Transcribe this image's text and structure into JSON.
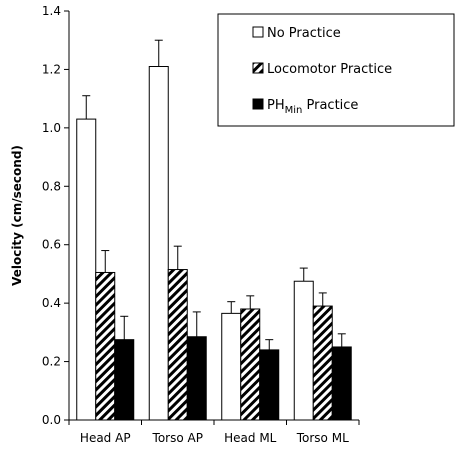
{
  "chart_data": {
    "type": "bar",
    "categories": [
      "Head AP",
      "Torso AP",
      "Head ML",
      "Torso ML"
    ],
    "series": [
      {
        "name": "No Practice",
        "values": [
          1.03,
          1.21,
          0.365,
          0.475
        ],
        "errors": [
          0.08,
          0.09,
          0.04,
          0.045
        ],
        "fill": "white"
      },
      {
        "name": "Locomotor Practice",
        "values": [
          0.505,
          0.515,
          0.38,
          0.39
        ],
        "errors": [
          0.075,
          0.08,
          0.045,
          0.045
        ],
        "fill": "hatch"
      },
      {
        "name_parts": [
          "PH",
          "Min",
          " Practice"
        ],
        "values": [
          0.275,
          0.285,
          0.24,
          0.25
        ],
        "errors": [
          0.08,
          0.085,
          0.035,
          0.045
        ],
        "fill": "black"
      }
    ],
    "ylabel": "Velocity (cm/second)",
    "ylim": [
      0,
      1.4
    ],
    "yticks": [
      "0.0",
      "0.2",
      "0.4",
      "0.6",
      "0.8",
      "1.0",
      "1.2",
      "1.4"
    ],
    "grid": false,
    "legend_position": "top-right",
    "colors": {
      "axis": "#000000",
      "bar_stroke": "#000000",
      "hatch_fill": "#000000",
      "solid_fill": "#000000"
    }
  }
}
